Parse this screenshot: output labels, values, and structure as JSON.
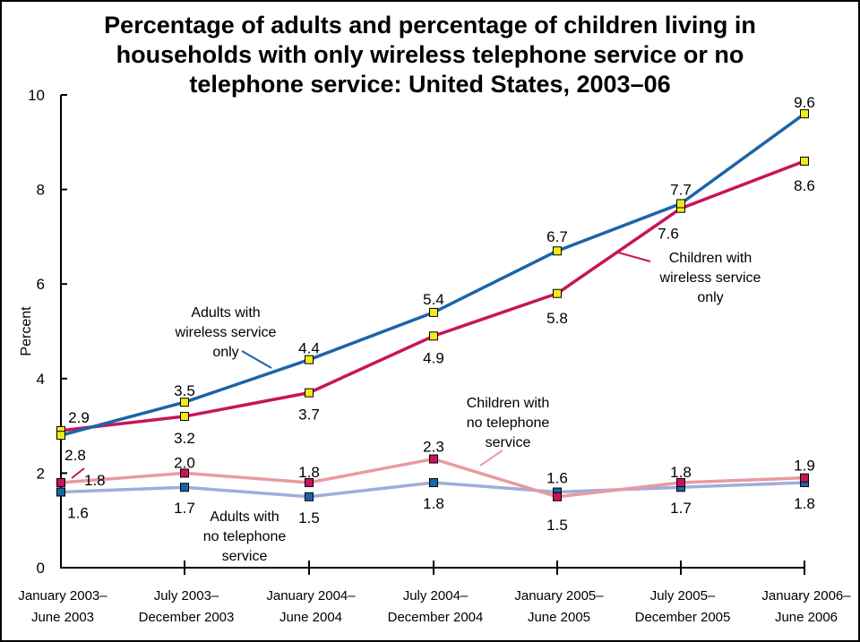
{
  "title": "Percentage of adults and percentage of children living in\nhouseholds with only wireless telephone service or no\ntelephone service: United States, 2003–06",
  "chart_data": {
    "type": "line",
    "title": "Percentage of adults and percentage of children living in households with only wireless telephone service or no telephone service: United States, 2003–06",
    "xlabel": "",
    "ylabel": "Percent",
    "ylim": [
      0,
      10
    ],
    "yticks": [
      0,
      2,
      4,
      6,
      8,
      10
    ],
    "grid": false,
    "categories": [
      [
        "January 2003–",
        "June 2003"
      ],
      [
        "July 2003–",
        "December 2003"
      ],
      [
        "January 2004–",
        "June 2004"
      ],
      [
        "July 2004–",
        "December 2004"
      ],
      [
        "January 2005–",
        "June 2005"
      ],
      [
        "July 2005–",
        "December 2005"
      ],
      [
        "January 2006–",
        "June 2006"
      ]
    ],
    "series": [
      {
        "name": [
          "Adults with",
          "wireless service",
          "only"
        ],
        "values": [
          2.8,
          3.5,
          4.4,
          5.4,
          6.7,
          7.7,
          9.6
        ],
        "color": "#1c64a8",
        "marker": "#f2ea1a"
      },
      {
        "name": [
          "Children with",
          "wireless service",
          "only"
        ],
        "values": [
          2.9,
          3.2,
          3.7,
          4.9,
          5.8,
          7.6,
          8.6
        ],
        "color": "#c8145a",
        "marker": "#f2ea1a"
      },
      {
        "name": [
          "Children with",
          "no telephone",
          "service"
        ],
        "values": [
          1.8,
          2.0,
          1.8,
          2.3,
          1.5,
          1.8,
          1.9
        ],
        "color": "#e99aa0",
        "marker": "#c8145a"
      },
      {
        "name": [
          "Adults with",
          "no telephone",
          "service"
        ],
        "values": [
          1.6,
          1.7,
          1.5,
          1.8,
          1.6,
          1.7,
          1.8
        ],
        "color": "#9eaedb",
        "marker": "#1c64a8"
      }
    ]
  }
}
